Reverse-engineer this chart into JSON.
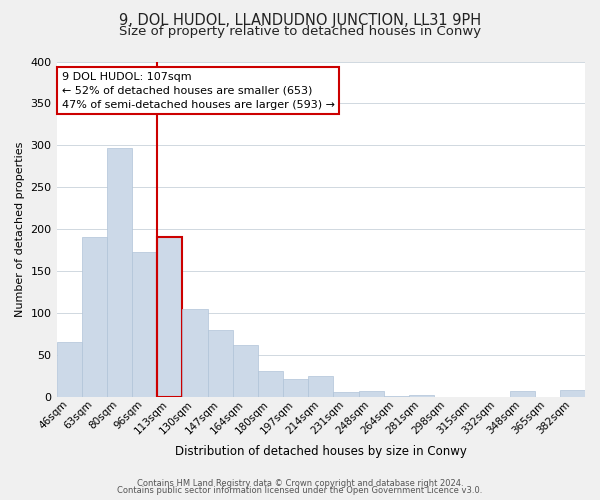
{
  "title": "9, DOL HUDOL, LLANDUDNO JUNCTION, LL31 9PH",
  "subtitle": "Size of property relative to detached houses in Conwy",
  "xlabel": "Distribution of detached houses by size in Conwy",
  "ylabel": "Number of detached properties",
  "categories": [
    "46sqm",
    "63sqm",
    "80sqm",
    "96sqm",
    "113sqm",
    "130sqm",
    "147sqm",
    "164sqm",
    "180sqm",
    "197sqm",
    "214sqm",
    "231sqm",
    "248sqm",
    "264sqm",
    "281sqm",
    "298sqm",
    "315sqm",
    "332sqm",
    "348sqm",
    "365sqm",
    "382sqm"
  ],
  "values": [
    65,
    190,
    297,
    172,
    190,
    105,
    80,
    62,
    30,
    21,
    25,
    5,
    7,
    1,
    2,
    0,
    0,
    0,
    7,
    0,
    8
  ],
  "bar_color": "#ccd9e8",
  "bar_edge_color": "#b0c4d8",
  "highlight_index": 4,
  "highlight_color": "#cc0000",
  "ylim": [
    0,
    400
  ],
  "yticks": [
    0,
    50,
    100,
    150,
    200,
    250,
    300,
    350,
    400
  ],
  "annotation_title": "9 DOL HUDOL: 107sqm",
  "annotation_line1": "← 52% of detached houses are smaller (653)",
  "annotation_line2": "47% of semi-detached houses are larger (593) →",
  "footer1": "Contains HM Land Registry data © Crown copyright and database right 2024.",
  "footer2": "Contains public sector information licensed under the Open Government Licence v3.0.",
  "background_color": "#f0f0f0",
  "plot_background_color": "#ffffff",
  "grid_color": "#d0d8e0",
  "title_fontsize": 10.5,
  "subtitle_fontsize": 9.5,
  "annotation_box_color": "#ffffff",
  "annotation_box_edge": "#cc0000",
  "vline_x_index": 4
}
